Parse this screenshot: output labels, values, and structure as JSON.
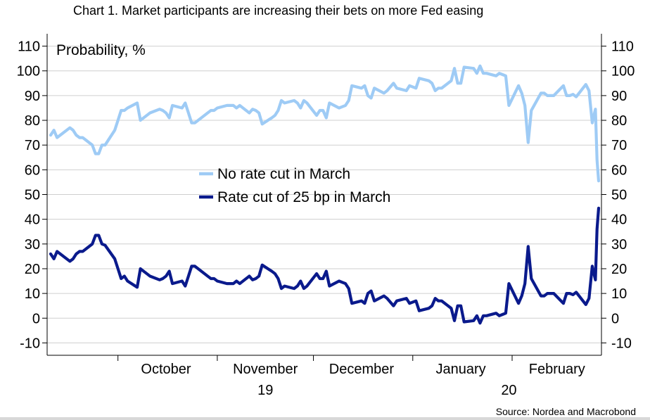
{
  "chart_data": {
    "type": "line",
    "title": "Chart 1. Market participants are increasing their bets on more Fed easing",
    "ylabel": "Probability, %",
    "source": "Source: Nordea and Macrobond",
    "ylim": [
      -15,
      115
    ],
    "yticks": [
      -10,
      0,
      10,
      20,
      30,
      40,
      50,
      60,
      70,
      80,
      90,
      100,
      110
    ],
    "grid": true,
    "legend_position": "center",
    "xlim": [
      "2019-09-10",
      "2020-02-28"
    ],
    "month_ticks": [
      "2019-10-01",
      "2019-11-01",
      "2019-12-01",
      "2020-01-01",
      "2020-02-01",
      "2020-03-01"
    ],
    "month_labels": [
      {
        "text": "October",
        "center": "2019-10-16"
      },
      {
        "text": "November",
        "center": "2019-11-16"
      },
      {
        "text": "December",
        "center": "2019-12-16"
      },
      {
        "text": "January",
        "center": "2020-01-16"
      },
      {
        "text": "February",
        "center": "2020-02-15"
      }
    ],
    "year_labels": [
      {
        "text": "19",
        "center": "2019-11-16"
      },
      {
        "text": "20",
        "center": "2020-01-31"
      }
    ],
    "series": [
      {
        "name": "No rate cut in March",
        "color": "#9ecbf5",
        "points": [
          [
            "2019-09-10",
            74
          ],
          [
            "2019-09-11",
            76
          ],
          [
            "2019-09-12",
            73
          ],
          [
            "2019-09-13",
            74
          ],
          [
            "2019-09-16",
            77
          ],
          [
            "2019-09-17",
            76
          ],
          [
            "2019-09-18",
            74
          ],
          [
            "2019-09-19",
            73
          ],
          [
            "2019-09-20",
            73
          ],
          [
            "2019-09-23",
            70
          ],
          [
            "2019-09-24",
            66.5
          ],
          [
            "2019-09-25",
            66.5
          ],
          [
            "2019-09-26",
            70
          ],
          [
            "2019-09-27",
            70
          ],
          [
            "2019-09-30",
            76
          ],
          [
            "2019-10-01",
            80
          ],
          [
            "2019-10-02",
            84
          ],
          [
            "2019-10-03",
            84
          ],
          [
            "2019-10-04",
            85
          ],
          [
            "2019-10-07",
            87
          ],
          [
            "2019-10-08",
            80
          ],
          [
            "2019-10-09",
            81
          ],
          [
            "2019-10-10",
            82
          ],
          [
            "2019-10-11",
            83
          ],
          [
            "2019-10-14",
            84.5
          ],
          [
            "2019-10-15",
            84
          ],
          [
            "2019-10-16",
            83
          ],
          [
            "2019-10-17",
            81
          ],
          [
            "2019-10-18",
            86
          ],
          [
            "2019-10-21",
            85
          ],
          [
            "2019-10-22",
            87
          ],
          [
            "2019-10-23",
            83
          ],
          [
            "2019-10-24",
            79
          ],
          [
            "2019-10-25",
            79
          ],
          [
            "2019-10-28",
            82
          ],
          [
            "2019-10-29",
            83
          ],
          [
            "2019-10-30",
            84
          ],
          [
            "2019-10-31",
            84
          ],
          [
            "2019-11-01",
            85
          ],
          [
            "2019-11-04",
            86
          ],
          [
            "2019-11-05",
            86
          ],
          [
            "2019-11-06",
            86
          ],
          [
            "2019-11-07",
            85
          ],
          [
            "2019-11-08",
            86
          ],
          [
            "2019-11-11",
            83
          ],
          [
            "2019-11-12",
            84.5
          ],
          [
            "2019-11-13",
            84
          ],
          [
            "2019-11-14",
            83
          ],
          [
            "2019-11-15",
            78.5
          ],
          [
            "2019-11-18",
            81
          ],
          [
            "2019-11-19",
            82
          ],
          [
            "2019-11-20",
            84
          ],
          [
            "2019-11-21",
            88
          ],
          [
            "2019-11-22",
            87
          ],
          [
            "2019-11-25",
            88
          ],
          [
            "2019-11-26",
            87
          ],
          [
            "2019-11-27",
            85
          ],
          [
            "2019-11-28",
            88
          ],
          [
            "2019-11-29",
            87
          ],
          [
            "2019-12-02",
            82
          ],
          [
            "2019-12-03",
            84
          ],
          [
            "2019-12-04",
            84
          ],
          [
            "2019-12-05",
            81
          ],
          [
            "2019-12-06",
            87
          ],
          [
            "2019-12-09",
            85
          ],
          [
            "2019-12-10",
            85.5
          ],
          [
            "2019-12-11",
            86
          ],
          [
            "2019-12-12",
            88
          ],
          [
            "2019-12-13",
            94
          ],
          [
            "2019-12-16",
            93
          ],
          [
            "2019-12-17",
            94
          ],
          [
            "2019-12-18",
            90
          ],
          [
            "2019-12-19",
            89
          ],
          [
            "2019-12-20",
            93
          ],
          [
            "2019-12-23",
            91
          ],
          [
            "2019-12-24",
            92
          ],
          [
            "2019-12-26",
            95
          ],
          [
            "2019-12-27",
            93
          ],
          [
            "2019-12-30",
            92
          ],
          [
            "2019-12-31",
            94
          ],
          [
            "2020-01-02",
            93
          ],
          [
            "2020-01-03",
            97
          ],
          [
            "2020-01-06",
            96
          ],
          [
            "2020-01-07",
            95
          ],
          [
            "2020-01-08",
            92
          ],
          [
            "2020-01-09",
            93
          ],
          [
            "2020-01-10",
            93
          ],
          [
            "2020-01-13",
            96
          ],
          [
            "2020-01-14",
            101
          ],
          [
            "2020-01-15",
            95
          ],
          [
            "2020-01-16",
            95
          ],
          [
            "2020-01-17",
            101.5
          ],
          [
            "2020-01-20",
            101
          ],
          [
            "2020-01-21",
            99
          ],
          [
            "2020-01-22",
            102
          ],
          [
            "2020-01-23",
            99
          ],
          [
            "2020-01-24",
            99
          ],
          [
            "2020-01-27",
            98
          ],
          [
            "2020-01-28",
            99
          ],
          [
            "2020-01-29",
            98.5
          ],
          [
            "2020-01-30",
            98
          ],
          [
            "2020-01-31",
            86
          ],
          [
            "2020-02-03",
            94
          ],
          [
            "2020-02-04",
            91
          ],
          [
            "2020-02-05",
            86
          ],
          [
            "2020-02-06",
            71
          ],
          [
            "2020-02-07",
            84
          ],
          [
            "2020-02-10",
            91
          ],
          [
            "2020-02-11",
            91
          ],
          [
            "2020-02-12",
            90
          ],
          [
            "2020-02-13",
            90
          ],
          [
            "2020-02-14",
            90
          ],
          [
            "2020-02-17",
            94
          ],
          [
            "2020-02-18",
            90
          ],
          [
            "2020-02-19",
            90
          ],
          [
            "2020-02-20",
            90.5
          ],
          [
            "2020-02-21",
            89.5
          ],
          [
            "2020-02-24",
            94.5
          ],
          [
            "2020-02-25",
            92
          ],
          [
            "2020-02-26",
            79
          ],
          [
            "2020-02-27",
            84.5
          ],
          [
            "2020-02-27T12:00",
            64
          ],
          [
            "2020-02-28",
            55.5
          ]
        ]
      },
      {
        "name": "Rate cut of 25 bp in March",
        "color": "#0a1a8c",
        "points": [
          [
            "2019-09-10",
            26
          ],
          [
            "2019-09-11",
            24
          ],
          [
            "2019-09-12",
            27
          ],
          [
            "2019-09-13",
            26
          ],
          [
            "2019-09-16",
            23
          ],
          [
            "2019-09-17",
            24
          ],
          [
            "2019-09-18",
            26
          ],
          [
            "2019-09-19",
            27
          ],
          [
            "2019-09-20",
            27
          ],
          [
            "2019-09-23",
            30
          ],
          [
            "2019-09-24",
            33.5
          ],
          [
            "2019-09-25",
            33.5
          ],
          [
            "2019-09-26",
            30
          ],
          [
            "2019-09-27",
            29.5
          ],
          [
            "2019-09-30",
            24
          ],
          [
            "2019-10-01",
            20
          ],
          [
            "2019-10-02",
            16
          ],
          [
            "2019-10-03",
            17
          ],
          [
            "2019-10-04",
            15
          ],
          [
            "2019-10-07",
            12.5
          ],
          [
            "2019-10-08",
            20
          ],
          [
            "2019-10-09",
            19
          ],
          [
            "2019-10-10",
            18
          ],
          [
            "2019-10-11",
            17
          ],
          [
            "2019-10-14",
            15.5
          ],
          [
            "2019-10-15",
            16
          ],
          [
            "2019-10-16",
            17
          ],
          [
            "2019-10-17",
            19
          ],
          [
            "2019-10-18",
            14
          ],
          [
            "2019-10-21",
            15
          ],
          [
            "2019-10-22",
            13
          ],
          [
            "2019-10-23",
            17
          ],
          [
            "2019-10-24",
            21
          ],
          [
            "2019-10-25",
            21
          ],
          [
            "2019-10-28",
            18
          ],
          [
            "2019-10-29",
            17
          ],
          [
            "2019-10-30",
            16
          ],
          [
            "2019-10-31",
            16
          ],
          [
            "2019-11-01",
            15
          ],
          [
            "2019-11-04",
            14
          ],
          [
            "2019-11-05",
            14
          ],
          [
            "2019-11-06",
            14
          ],
          [
            "2019-11-07",
            15
          ],
          [
            "2019-11-08",
            14
          ],
          [
            "2019-11-11",
            17
          ],
          [
            "2019-11-12",
            15.5
          ],
          [
            "2019-11-13",
            16
          ],
          [
            "2019-11-14",
            17
          ],
          [
            "2019-11-15",
            21.5
          ],
          [
            "2019-11-18",
            19
          ],
          [
            "2019-11-19",
            18
          ],
          [
            "2019-11-20",
            16
          ],
          [
            "2019-11-21",
            12
          ],
          [
            "2019-11-22",
            13
          ],
          [
            "2019-11-25",
            12
          ],
          [
            "2019-11-26",
            13
          ],
          [
            "2019-11-27",
            15
          ],
          [
            "2019-11-28",
            12
          ],
          [
            "2019-11-29",
            13
          ],
          [
            "2019-12-02",
            18
          ],
          [
            "2019-12-03",
            16
          ],
          [
            "2019-12-04",
            16
          ],
          [
            "2019-12-05",
            19
          ],
          [
            "2019-12-06",
            13
          ],
          [
            "2019-12-09",
            15
          ],
          [
            "2019-12-10",
            14.5
          ],
          [
            "2019-12-11",
            14
          ],
          [
            "2019-12-12",
            12
          ],
          [
            "2019-12-13",
            6
          ],
          [
            "2019-12-16",
            7
          ],
          [
            "2019-12-17",
            6
          ],
          [
            "2019-12-18",
            10
          ],
          [
            "2019-12-19",
            11
          ],
          [
            "2019-12-20",
            7
          ],
          [
            "2019-12-23",
            9
          ],
          [
            "2019-12-24",
            8
          ],
          [
            "2019-12-26",
            5
          ],
          [
            "2019-12-27",
            7
          ],
          [
            "2019-12-30",
            8
          ],
          [
            "2019-12-31",
            6
          ],
          [
            "2020-01-02",
            7
          ],
          [
            "2020-01-03",
            3
          ],
          [
            "2020-01-06",
            4
          ],
          [
            "2020-01-07",
            5
          ],
          [
            "2020-01-08",
            8
          ],
          [
            "2020-01-09",
            7
          ],
          [
            "2020-01-10",
            7
          ],
          [
            "2020-01-13",
            4
          ],
          [
            "2020-01-14",
            -1
          ],
          [
            "2020-01-15",
            5
          ],
          [
            "2020-01-16",
            5
          ],
          [
            "2020-01-17",
            -1.5
          ],
          [
            "2020-01-20",
            -1
          ],
          [
            "2020-01-21",
            1
          ],
          [
            "2020-01-22",
            -2
          ],
          [
            "2020-01-23",
            1
          ],
          [
            "2020-01-24",
            1
          ],
          [
            "2020-01-27",
            2
          ],
          [
            "2020-01-28",
            1
          ],
          [
            "2020-01-29",
            1.5
          ],
          [
            "2020-01-30",
            2
          ],
          [
            "2020-01-31",
            14
          ],
          [
            "2020-02-03",
            6
          ],
          [
            "2020-02-04",
            9
          ],
          [
            "2020-02-05",
            14
          ],
          [
            "2020-02-06",
            29
          ],
          [
            "2020-02-07",
            16
          ],
          [
            "2020-02-10",
            9
          ],
          [
            "2020-02-11",
            9
          ],
          [
            "2020-02-12",
            10
          ],
          [
            "2020-02-13",
            10
          ],
          [
            "2020-02-14",
            10
          ],
          [
            "2020-02-17",
            6
          ],
          [
            "2020-02-18",
            10
          ],
          [
            "2020-02-19",
            10
          ],
          [
            "2020-02-20",
            9.5
          ],
          [
            "2020-02-21",
            10.5
          ],
          [
            "2020-02-24",
            5.5
          ],
          [
            "2020-02-25",
            8
          ],
          [
            "2020-02-26",
            21
          ],
          [
            "2020-02-27",
            15.5
          ],
          [
            "2020-02-27T12:00",
            36
          ],
          [
            "2020-02-28",
            44.5
          ]
        ]
      }
    ]
  }
}
